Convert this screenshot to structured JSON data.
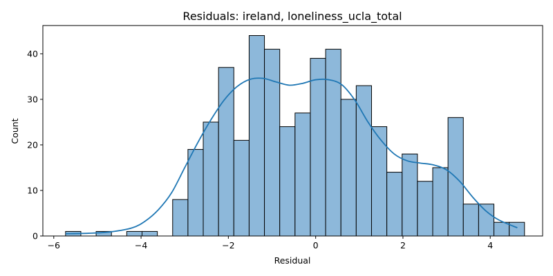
{
  "chart_data": {
    "type": "bar",
    "title": "Residuals: ireland, loneliness_ucla_total",
    "xlabel": "Residual",
    "ylabel": "Count",
    "xlim": [
      -6.25,
      5.2
    ],
    "ylim": [
      0,
      46.2
    ],
    "x_ticks": [
      -6,
      -4,
      -2,
      0,
      2,
      4
    ],
    "x_tick_labels": [
      "−6",
      "−4",
      "−2",
      "0",
      "2",
      "4"
    ],
    "y_ticks": [
      0,
      10,
      20,
      30,
      40
    ],
    "y_tick_labels": [
      "0",
      "10",
      "20",
      "30",
      "40"
    ],
    "bin_start": -5.73,
    "bin_width": 0.3505,
    "counts": [
      1,
      0,
      1,
      0,
      1,
      1,
      0,
      8,
      19,
      25,
      37,
      21,
      44,
      41,
      24,
      27,
      39,
      41,
      30,
      33,
      24,
      14,
      18,
      12,
      15,
      26,
      7,
      7,
      3,
      3
    ],
    "kde": {
      "x": [
        -5.73,
        -5.2,
        -4.7,
        -4.2,
        -3.9,
        -3.6,
        -3.3,
        -3.0,
        -2.7,
        -2.4,
        -2.1,
        -1.8,
        -1.5,
        -1.2,
        -0.9,
        -0.6,
        -0.3,
        0.0,
        0.3,
        0.6,
        0.9,
        1.2,
        1.5,
        1.8,
        2.1,
        2.4,
        2.7,
        3.0,
        3.3,
        3.6,
        3.9,
        4.2,
        4.62
      ],
      "y": [
        0.5,
        0.6,
        0.9,
        1.8,
        3.3,
        5.8,
        9.5,
        15.0,
        20.5,
        25.5,
        29.8,
        32.8,
        34.4,
        34.6,
        33.8,
        33.1,
        33.5,
        34.3,
        34.3,
        33.2,
        29.8,
        25.0,
        21.0,
        18.0,
        16.5,
        16.0,
        15.6,
        14.5,
        12.0,
        8.5,
        5.5,
        3.5,
        1.8
      ]
    },
    "colors": {
      "bar": "#8db8da",
      "line": "#1f77b4"
    },
    "grid": false,
    "legend": "none"
  }
}
